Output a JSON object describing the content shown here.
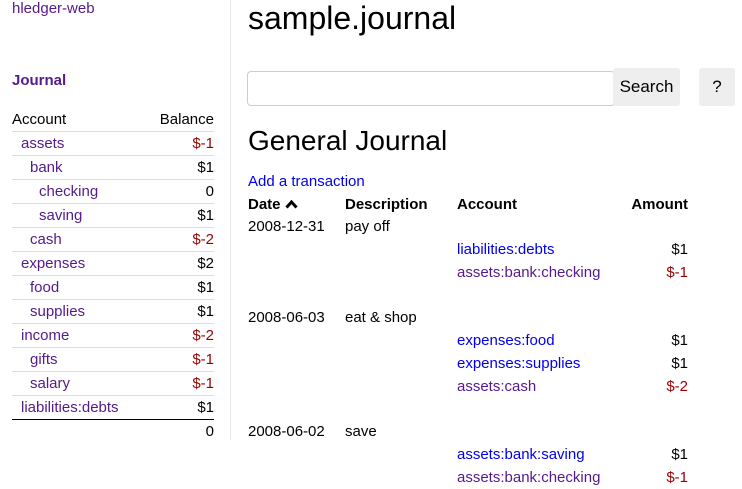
{
  "app": {
    "brand": "hledger-web",
    "nav_journal": "Journal"
  },
  "sidebar": {
    "col_account": "Account",
    "col_balance": "Balance",
    "rows": [
      {
        "name": "assets",
        "balance": "$-1",
        "indent": 0,
        "neg": true
      },
      {
        "name": "bank",
        "balance": "$1",
        "indent": 1,
        "neg": false
      },
      {
        "name": "checking",
        "balance": "0",
        "indent": 2,
        "neg": false
      },
      {
        "name": "saving",
        "balance": "$1",
        "indent": 2,
        "neg": false
      },
      {
        "name": "cash",
        "balance": "$-2",
        "indent": 1,
        "neg": true
      },
      {
        "name": "expenses",
        "balance": "$2",
        "indent": 0,
        "neg": false
      },
      {
        "name": "food",
        "balance": "$1",
        "indent": 1,
        "neg": false
      },
      {
        "name": "supplies",
        "balance": "$1",
        "indent": 1,
        "neg": false
      },
      {
        "name": "income",
        "balance": "$-2",
        "indent": 0,
        "neg": true
      },
      {
        "name": "gifts",
        "balance": "$-1",
        "indent": 1,
        "neg": true
      },
      {
        "name": "salary",
        "balance": "$-1",
        "indent": 1,
        "neg": true
      },
      {
        "name": "liabilities:debts",
        "balance": "$1",
        "indent": 0,
        "neg": false
      }
    ],
    "total": "0"
  },
  "main": {
    "title": "sample.journal",
    "search_placeholder": "",
    "search_label": "Search",
    "help_label": "?",
    "heading": "General Journal",
    "add_link": "Add a transaction",
    "columns": {
      "date": "Date",
      "sort_icon": "chevron-up-icon",
      "description": "Description",
      "account": "Account",
      "amount": "Amount"
    },
    "transactions": [
      {
        "date": "2008-12-31",
        "description": "pay off",
        "postings": [
          {
            "account": "liabilities:debts",
            "amount": "$1",
            "neg": false,
            "visited": false
          },
          {
            "account": "assets:bank:checking",
            "amount": "$-1",
            "neg": true,
            "visited": true
          }
        ]
      },
      {
        "date": "2008-06-03",
        "description": "eat & shop",
        "postings": [
          {
            "account": "expenses:food",
            "amount": "$1",
            "neg": false,
            "visited": false
          },
          {
            "account": "expenses:supplies",
            "amount": "$1",
            "neg": false,
            "visited": false
          },
          {
            "account": "assets:cash",
            "amount": "$-2",
            "neg": true,
            "visited": true
          }
        ]
      },
      {
        "date": "2008-06-02",
        "description": "save",
        "postings": [
          {
            "account": "assets:bank:saving",
            "amount": "$1",
            "neg": false,
            "visited": false
          },
          {
            "account": "assets:bank:checking",
            "amount": "$-1",
            "neg": true,
            "visited": true
          }
        ]
      }
    ]
  },
  "colors": {
    "link": "#0000ee",
    "visited": "#551a8b",
    "negative": "#990000"
  }
}
